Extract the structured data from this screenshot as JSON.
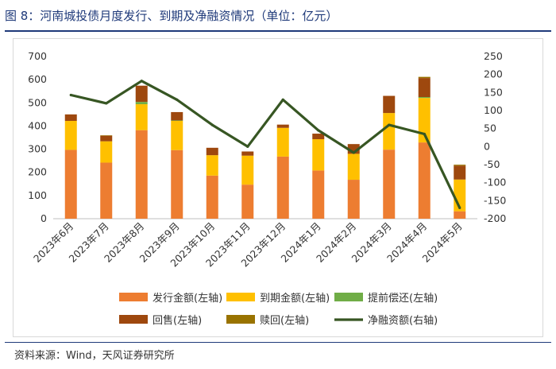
{
  "title": "图 8：河南城投债月度发行、到期及净融资情况（单位：亿元）",
  "source": "资料来源：Wind，天风证券研究所",
  "chart_data": {
    "type": "bar",
    "stacked": true,
    "categories": [
      "2023年6月",
      "2023年7月",
      "2023年8月",
      "2023年9月",
      "2023年10月",
      "2023年11月",
      "2023年12月",
      "2024年1月",
      "2024年2月",
      "2024年3月",
      "2024年4月",
      "2024年5月"
    ],
    "left_axis": {
      "min": 0,
      "max": 700,
      "step": 100,
      "ticks": [
        "0",
        "100",
        "200",
        "300",
        "400",
        "500",
        "600",
        "700"
      ]
    },
    "right_axis": {
      "min": -200,
      "max": 250,
      "step": 50,
      "ticks": [
        "-200",
        "-150",
        "-100",
        "-50",
        "0",
        "50",
        "100",
        "150",
        "200",
        "250"
      ]
    },
    "grid": false,
    "legend_position": "bottom",
    "series": [
      {
        "name": "发行金额(左轴)",
        "axis": "left",
        "kind": "bar",
        "color": "#ED7D31",
        "values": [
          297,
          242,
          382,
          296,
          186,
          147,
          268,
          208,
          168,
          298,
          329,
          32
        ]
      },
      {
        "name": "到期金额(左轴)",
        "axis": "left",
        "kind": "bar",
        "color": "#FFC000",
        "values": [
          125,
          92,
          112,
          126,
          88,
          125,
          124,
          135,
          112,
          158,
          192,
          137
        ]
      },
      {
        "name": "提前偿还(左轴)",
        "axis": "left",
        "kind": "bar",
        "color": "#70AD47",
        "values": [
          0,
          0,
          10,
          2,
          0,
          0,
          0,
          0,
          0,
          0,
          4,
          0
        ]
      },
      {
        "name": "回售(左轴)",
        "axis": "left",
        "kind": "bar",
        "color": "#9E480E",
        "values": [
          28,
          24,
          70,
          36,
          32,
          18,
          14,
          24,
          42,
          74,
          82,
          60
        ]
      },
      {
        "name": "赎回(左轴)",
        "axis": "left",
        "kind": "bar",
        "color": "#997300",
        "values": [
          0,
          2,
          0,
          0,
          0,
          0,
          0,
          0,
          0,
          0,
          5,
          4
        ]
      },
      {
        "name": "净融资额(右轴)",
        "axis": "right",
        "kind": "line",
        "color": "#375623",
        "values": [
          143,
          120,
          182,
          130,
          60,
          0,
          130,
          45,
          -17,
          60,
          35,
          -170
        ]
      }
    ]
  }
}
